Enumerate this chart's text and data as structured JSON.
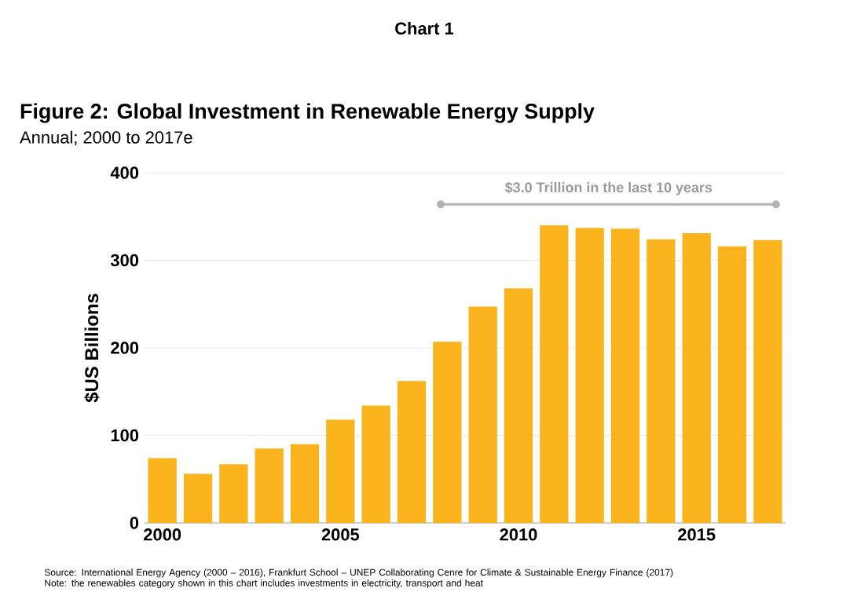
{
  "chart_data": {
    "type": "bar",
    "title": "Figure 2: Global Investment in Renewable Energy Supply",
    "subtitle": "Annual; 2000 to 2017e",
    "ylabel": "$US Billions",
    "annotations": [
      "Chart 1",
      "$3.0 Trillion in the last 10 years",
      "Source: International Energy Agency (2000 – 2016), Frankfurt School – UNEP Collaborating Cenre for Climate & Sustainable Energy Finance (2017)",
      "Note: the renewables category shown in this chart includes investments in electricity, transport and heat"
    ],
    "x": [
      2000,
      2001,
      2002,
      2003,
      2004,
      2005,
      2006,
      2007,
      2008,
      2009,
      2010,
      2011,
      2012,
      2013,
      2014,
      2015,
      2016,
      2017
    ],
    "values": [
      74,
      56,
      67,
      85,
      90,
      118,
      134,
      162,
      207,
      247,
      268,
      340,
      337,
      336,
      324,
      331,
      316,
      323
    ],
    "color": "#fbb41e",
    "xlim": [
      1999.5,
      2017.5
    ],
    "xticks": [
      2000,
      2005,
      2010,
      2015
    ],
    "ylim": [
      0,
      400
    ],
    "yticks": [
      0,
      100,
      200,
      300,
      400
    ],
    "grid": "y"
  }
}
